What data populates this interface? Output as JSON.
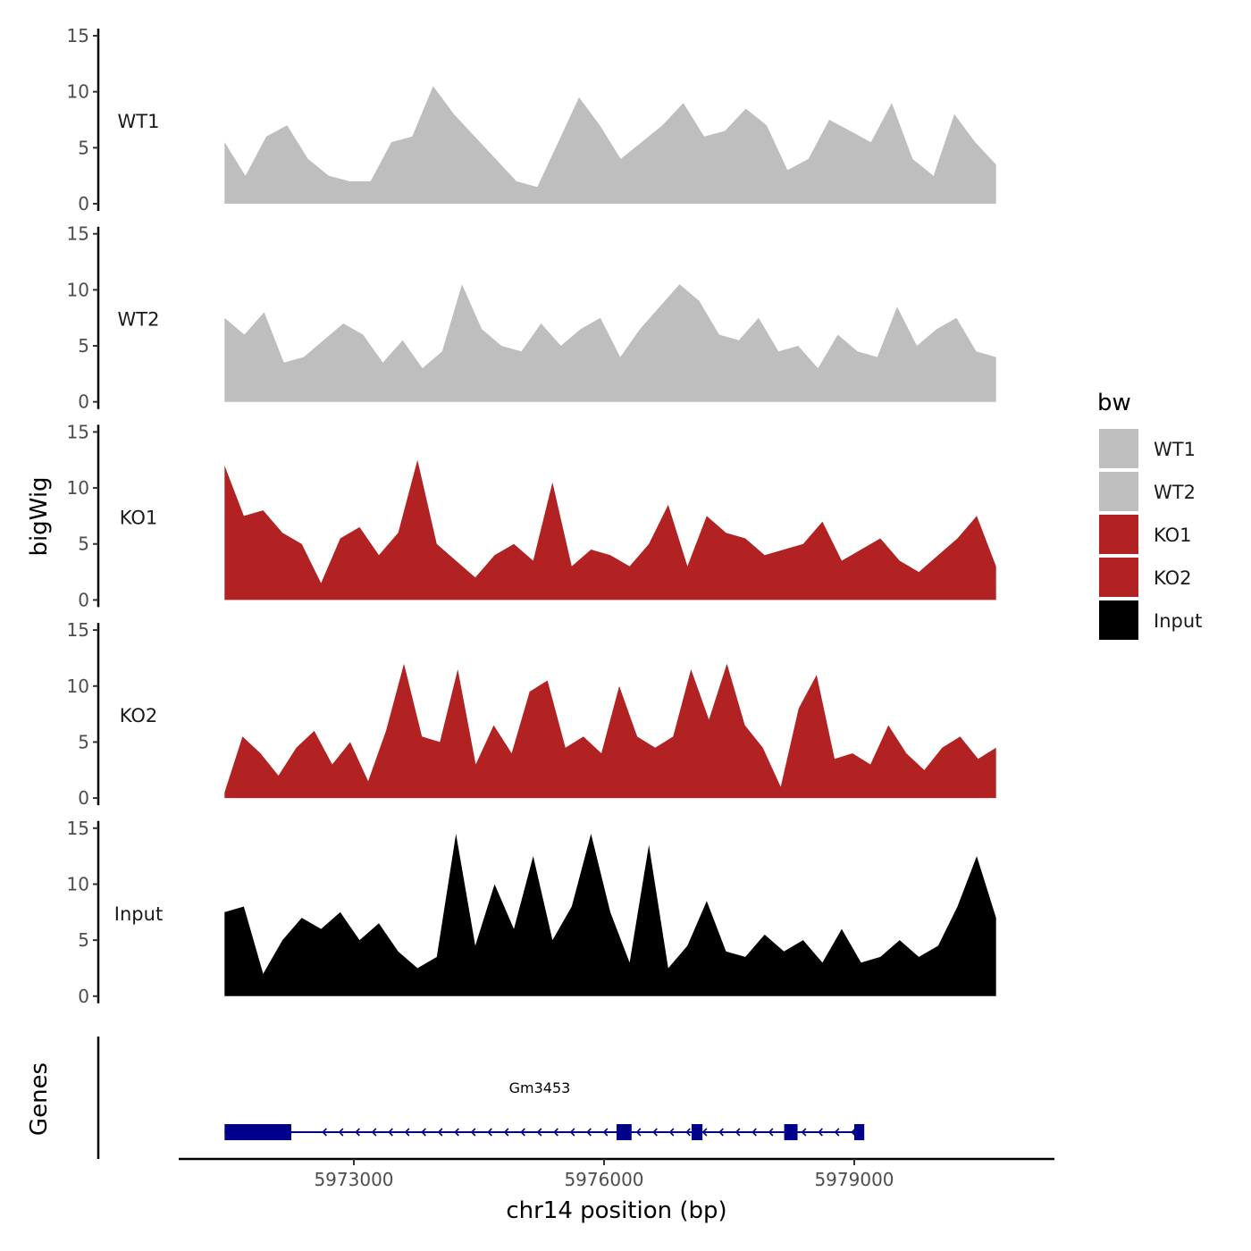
{
  "chart_data": {
    "type": "area",
    "title": "",
    "ylabel": "bigWig",
    "xlabel": "chr14 position (bp)",
    "xlim": [
      5970900,
      5981400
    ],
    "x_ticks": [
      5973000,
      5976000,
      5979000
    ],
    "x_tick_labels": [
      "5973000",
      "5976000",
      "5979000"
    ],
    "ylim": [
      0,
      15
    ],
    "y_ticks": [
      0,
      5,
      10,
      15
    ],
    "y_tick_labels": [
      "0",
      "5",
      "10",
      "15"
    ],
    "x_start": 5971450,
    "x_step": 250,
    "series": [
      {
        "name": "WT1",
        "color": "#bebebe",
        "values": [
          5.5,
          2.5,
          6,
          7,
          4,
          2.5,
          2,
          2,
          5.5,
          6,
          10.5,
          8,
          6,
          4,
          2,
          1.5,
          5.5,
          9.5,
          7,
          4,
          5.5,
          7,
          9,
          6,
          6.5,
          8.5,
          7,
          3,
          4,
          7.5,
          6.5,
          5.5,
          9,
          4,
          2.5,
          8,
          5.5,
          3.5
        ]
      },
      {
        "name": "WT2",
        "color": "#bebebe",
        "values": [
          7.5,
          6,
          8,
          3.5,
          4,
          5.5,
          7,
          6,
          3.5,
          5.5,
          3,
          4.5,
          10.5,
          6.5,
          5,
          4.5,
          7,
          5,
          6.5,
          7.5,
          4,
          6.5,
          8.5,
          10.5,
          9,
          6,
          5.5,
          7.5,
          4.5,
          5,
          3,
          6,
          4.5,
          4,
          8.5,
          5,
          6.5,
          7.5,
          4.5,
          4
        ]
      },
      {
        "name": "KO1",
        "color": "#b22222",
        "values": [
          12,
          7.5,
          8,
          6,
          5,
          1.5,
          5.5,
          6.5,
          4,
          6,
          12.5,
          5,
          3.5,
          2,
          4,
          5,
          3.5,
          10.5,
          3,
          4.5,
          4,
          3,
          5,
          8.5,
          3,
          7.5,
          6,
          5.5,
          4,
          4.5,
          5,
          7,
          3.5,
          4.5,
          5.5,
          3.5,
          2.5,
          4,
          5.5,
          7.5,
          3
        ]
      },
      {
        "name": "KO2",
        "color": "#b22222",
        "values": [
          0.5,
          5.5,
          4,
          2,
          4.5,
          6,
          3,
          5,
          1.5,
          6,
          12,
          5.5,
          5,
          11.5,
          3,
          6.5,
          4,
          9.5,
          10.5,
          4.5,
          5.5,
          4,
          10,
          5.5,
          4.5,
          5.5,
          11.5,
          7,
          12,
          6.5,
          4.5,
          1,
          8,
          11,
          3.5,
          4,
          3,
          6.5,
          4,
          2.5,
          4.5,
          5.5,
          3.5,
          4.5
        ]
      },
      {
        "name": "Input",
        "color": "#000000",
        "values": [
          7.5,
          8,
          2,
          5,
          7,
          6,
          7.5,
          5,
          6.5,
          4,
          2.5,
          3.5,
          14.5,
          4.5,
          10,
          6,
          12.5,
          5,
          8,
          14.5,
          7.5,
          3,
          13.5,
          2.5,
          4.5,
          8.5,
          4,
          3.5,
          5.5,
          4,
          5,
          3,
          6,
          3,
          3.5,
          5,
          3.5,
          4.5,
          8,
          12.5,
          7
        ]
      }
    ],
    "genes": {
      "title": "Genes",
      "color": "#00008b",
      "label": "Gm3453",
      "strand": "-",
      "span": [
        5971450,
        5979100
      ],
      "exons": [
        [
          5971450,
          5972250
        ],
        [
          5976150,
          5976330
        ],
        [
          5977050,
          5977180
        ],
        [
          5978160,
          5978320
        ],
        [
          5979000,
          5979120
        ]
      ]
    },
    "legend": {
      "title": "bw",
      "position": "right",
      "items": [
        {
          "label": "WT1",
          "color": "#bebebe"
        },
        {
          "label": "WT2",
          "color": "#bebebe"
        },
        {
          "label": "KO1",
          "color": "#b22222"
        },
        {
          "label": "KO2",
          "color": "#b22222"
        },
        {
          "label": "Input",
          "color": "#000000"
        }
      ]
    }
  }
}
